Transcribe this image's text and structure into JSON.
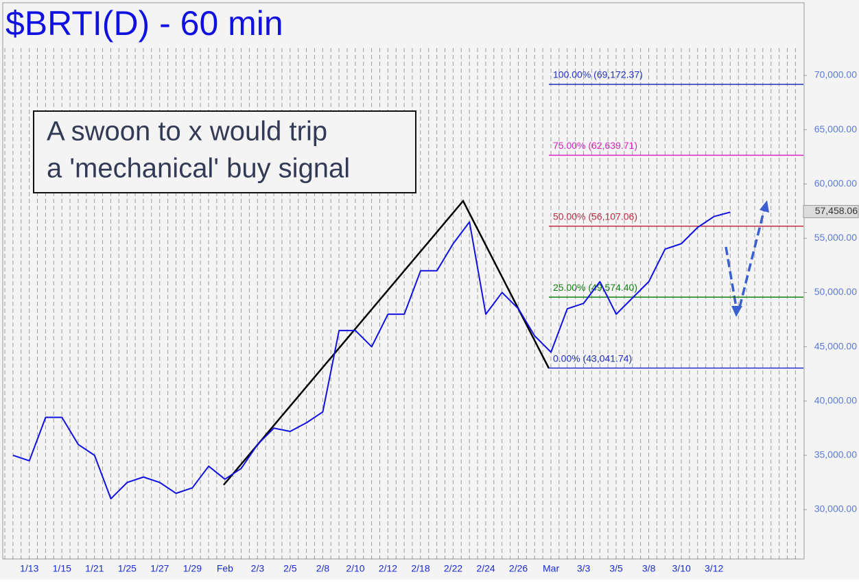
{
  "chart_data": {
    "type": "line",
    "title": "$BRTI(D) - 60 min",
    "annotation": [
      "A swoon to x would trip",
      "a 'mechanical' buy signal"
    ],
    "categories": [
      null,
      "1/13",
      null,
      "1/15",
      null,
      "1/21",
      null,
      "1/25",
      null,
      "1/27",
      null,
      "1/29",
      null,
      "Feb",
      null,
      "2/3",
      null,
      "2/5",
      null,
      "2/8",
      null,
      "2/10",
      null,
      "2/12",
      null,
      "2/18",
      null,
      "2/22",
      null,
      "2/24",
      null,
      "2/26",
      null,
      "Mar",
      null,
      "3/3",
      null,
      "3/5",
      null,
      "3/8",
      null,
      "3/10",
      null,
      "3/12",
      null
    ],
    "series": [
      {
        "name": "$BRTI",
        "color": "#1010e0",
        "values": [
          35000,
          34500,
          38500,
          38500,
          36000,
          35000,
          31000,
          32500,
          33000,
          32500,
          31500,
          32000,
          34000,
          32800,
          33800,
          36000,
          37500,
          37200,
          38000,
          39000,
          46500,
          46500,
          45000,
          48000,
          48000,
          52000,
          52000,
          54500,
          56500,
          48000,
          50000,
          48500,
          46000,
          44500,
          48500,
          49000,
          51000,
          48000,
          49500,
          51000,
          54000,
          54500,
          56000,
          57000,
          57400
        ]
      }
    ],
    "last_price": {
      "value": 57458.06,
      "label": "57,458.06"
    },
    "levels": [
      {
        "value": 69172.37,
        "label": "100.00% (69,172.37)",
        "color": "#2030c8"
      },
      {
        "value": 62639.71,
        "label": "75.00% (62,639.71)",
        "color": "#e020c0"
      },
      {
        "value": 56107.06,
        "label": "50.00% (56,107.06)",
        "color": "#c02a40"
      },
      {
        "value": 49574.4,
        "label": "25.00% (49,574.40)",
        "color": "#108010"
      },
      {
        "value": 43041.74,
        "label": "0.00% (43,041.74)",
        "color": "#2030c8"
      }
    ],
    "ylim": [
      25450,
      76630
    ],
    "yticks": [
      {
        "value": 30000,
        "label": "30,000.00"
      },
      {
        "value": 35000,
        "label": "35,000.00"
      },
      {
        "value": 40000,
        "label": "40,000.00"
      },
      {
        "value": 45000,
        "label": "45,000.00"
      },
      {
        "value": 50000,
        "label": "50,000.00"
      },
      {
        "value": 55000,
        "label": "55,000.00"
      },
      {
        "value": 60000,
        "label": "60,000.00"
      },
      {
        "value": 65000,
        "label": "65,000.00"
      },
      {
        "value": 70000,
        "label": "70,000.00"
      }
    ]
  }
}
